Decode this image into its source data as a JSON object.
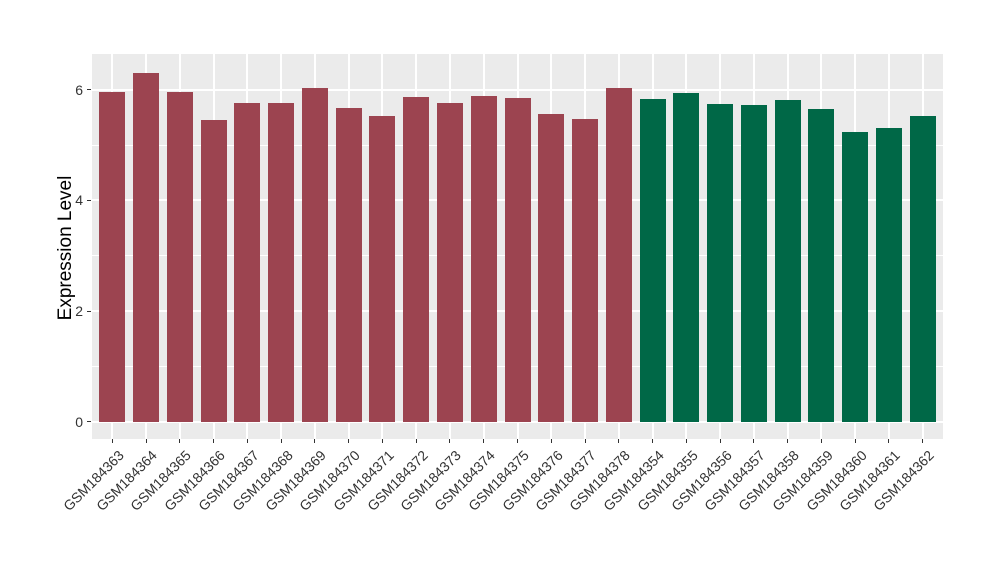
{
  "chart_data": {
    "type": "bar",
    "title": "",
    "xlabel": "",
    "ylabel": "Expression Level",
    "yticks": [
      0,
      2,
      4,
      6
    ],
    "yticks_minor": [
      1,
      3,
      5
    ],
    "ylim": [
      -0.315,
      6.65
    ],
    "grid": "white major horizontal lines at 0/2/4/6, white minor lines at 1/3/5, white vertical major line at each category, gray panel background",
    "legend": "none",
    "series": [
      {
        "name": "red-group",
        "color": "#9C4450",
        "categories": [
          "GSM184363",
          "GSM184364",
          "GSM184365",
          "GSM184366",
          "GSM184367",
          "GSM184368",
          "GSM184369",
          "GSM184370",
          "GSM184371",
          "GSM184372",
          "GSM184373",
          "GSM184374",
          "GSM184375",
          "GSM184376",
          "GSM184377",
          "GSM184378"
        ],
        "values": [
          5.96,
          6.3,
          5.96,
          5.46,
          5.77,
          5.76,
          6.03,
          5.68,
          5.53,
          5.87,
          5.77,
          5.89,
          5.86,
          5.57,
          5.47,
          6.03
        ]
      },
      {
        "name": "green-group",
        "color": "#006847",
        "categories": [
          "GSM184354",
          "GSM184355",
          "GSM184356",
          "GSM184357",
          "GSM184358",
          "GSM184359",
          "GSM184360",
          "GSM184361",
          "GSM184362"
        ],
        "values": [
          5.84,
          5.95,
          5.75,
          5.72,
          5.82,
          5.66,
          5.23,
          5.32,
          5.53
        ]
      }
    ]
  },
  "colors": {
    "figure_background": "#FFFFFF",
    "panel_background": "#EBEBEB",
    "gridline": "#FFFFFF",
    "tick_mark": "#333333",
    "axis_text": "#333333",
    "axis_title": "#000000"
  }
}
